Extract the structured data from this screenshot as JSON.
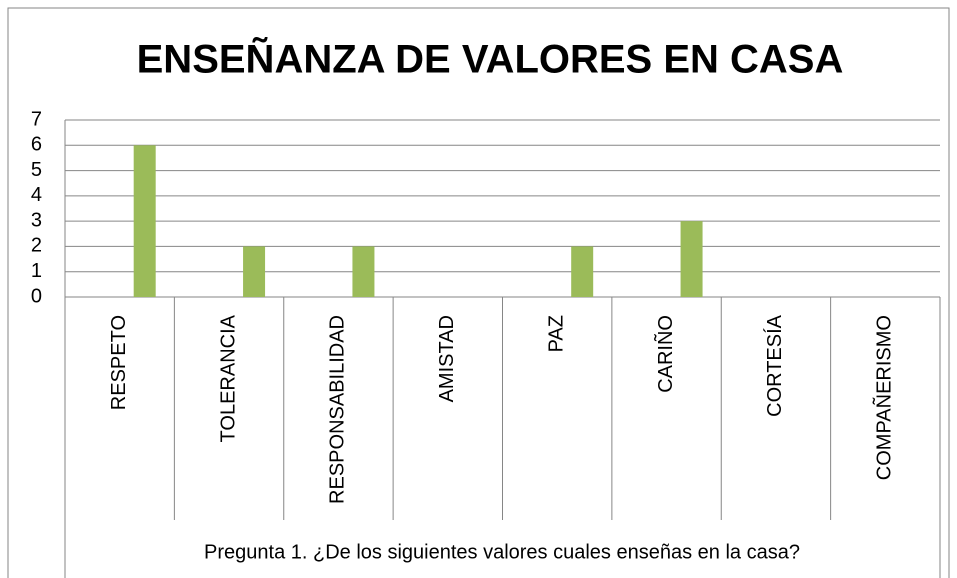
{
  "chart_data": {
    "type": "bar",
    "title": "ENSEÑANZA DE VALORES EN CASA",
    "categories": [
      "RESPETO",
      "TOLERANCIA",
      "RESPONSABILIDAD",
      "AMISTAD",
      "PAZ",
      "CARIÑO",
      "CORTESÍA",
      "COMPAÑERISMO"
    ],
    "values": [
      6,
      2,
      2,
      0,
      2,
      3,
      0,
      0
    ],
    "color": "#9bbb59",
    "x_label": "Pregunta 1. ¿De los siguientes valores cuales enseñas en la casa?",
    "ylim": [
      0,
      7
    ],
    "yticks": [
      0,
      1,
      2,
      3,
      4,
      5,
      6,
      7
    ],
    "grid": true
  }
}
